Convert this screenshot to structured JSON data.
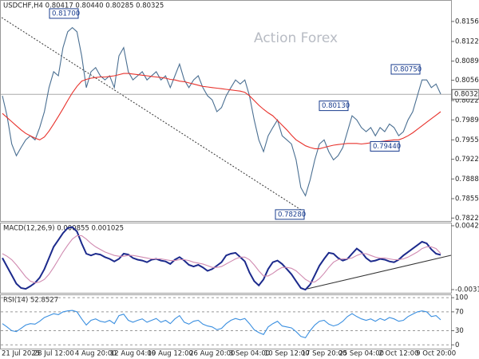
{
  "chart_data": [
    {
      "type": "line",
      "title": "USDCHF,H4 0.80417 0.80440 0.80285 0.80325",
      "watermark": "Action Forex",
      "categories": [
        null,
        null,
        null,
        "21 Jul 2025",
        null,
        null,
        null,
        null,
        null,
        null,
        null,
        "28 Jul 12:00",
        null,
        null,
        null,
        null,
        null,
        null,
        null,
        null,
        "4 Aug 20:00",
        null,
        null,
        null,
        null,
        null,
        null,
        null,
        "12 Aug 04:00",
        null,
        null,
        null,
        null,
        null,
        null,
        null,
        "19 Aug 12:00",
        null,
        null,
        null,
        null,
        null,
        null,
        null,
        null,
        "26 Aug 20:00",
        null,
        null,
        null,
        null,
        null,
        null,
        null,
        "3 Sep 04:00",
        null,
        null,
        null,
        null,
        null,
        null,
        null,
        "10 Sep 12:00",
        null,
        null,
        null,
        null,
        null,
        null,
        null,
        "17 Sep 20:00",
        null,
        null,
        null,
        null,
        null,
        null,
        null,
        "25 Sep 04:00",
        null,
        null,
        null,
        null,
        null,
        null,
        null,
        "2 Oct 12:00",
        null,
        null,
        null,
        null,
        null,
        null,
        null,
        "9 Oct 20:00",
        null
      ],
      "series": [
        {
          "color": "#4a6f92",
          "values": [
            0.803,
            0.7996,
            0.7948,
            0.7928,
            0.7942,
            0.7955,
            0.7962,
            0.7955,
            0.7976,
            0.8003,
            0.8044,
            0.8071,
            0.8064,
            0.8112,
            0.8139,
            0.8146,
            0.8139,
            0.8098,
            0.8044,
            0.8071,
            0.8078,
            0.8064,
            0.8057,
            0.8064,
            0.8044,
            0.8098,
            0.8112,
            0.8071,
            0.8057,
            0.8064,
            0.8071,
            0.8057,
            0.8064,
            0.8071,
            0.8057,
            0.8064,
            0.8044,
            0.8064,
            0.8084,
            0.8057,
            0.8044,
            0.8057,
            0.8064,
            0.8044,
            0.803,
            0.8023,
            0.8003,
            0.801,
            0.803,
            0.8044,
            0.8057,
            0.805,
            0.8057,
            0.803,
            0.7989,
            0.7955,
            0.7935,
            0.7962,
            0.7976,
            0.7989,
            0.7962,
            0.7955,
            0.7948,
            0.7921,
            0.7874,
            0.786,
            0.7887,
            0.7921,
            0.7948,
            0.7955,
            0.7935,
            0.7921,
            0.7928,
            0.7942,
            0.7969,
            0.7996,
            0.7989,
            0.7976,
            0.7969,
            0.7976,
            0.7962,
            0.7976,
            0.7969,
            0.7982,
            0.7976,
            0.7962,
            0.7969,
            0.7989,
            0.8003,
            0.803,
            0.8057,
            0.8057,
            0.8044,
            0.805,
            0.8033
          ]
        },
        {
          "color": "#e8322c",
          "values": [
            0.8,
            0.7993,
            0.7986,
            0.7979,
            0.7972,
            0.7966,
            0.7962,
            0.7958,
            0.7955,
            0.796,
            0.797,
            0.7982,
            0.7995,
            0.8008,
            0.8022,
            0.8035,
            0.8046,
            0.8055,
            0.8058,
            0.806,
            0.8061,
            0.8062,
            0.8062,
            0.8063,
            0.8064,
            0.8066,
            0.8068,
            0.8068,
            0.8067,
            0.8066,
            0.8065,
            0.8064,
            0.8063,
            0.8062,
            0.8061,
            0.806,
            0.8058,
            0.8057,
            0.8055,
            0.8054,
            0.8052,
            0.805,
            0.8048,
            0.8046,
            0.8045,
            0.8044,
            0.8043,
            0.8042,
            0.8041,
            0.804,
            0.8039,
            0.8038,
            0.8036,
            0.803,
            0.8022,
            0.8014,
            0.8007,
            0.8001,
            0.7996,
            0.7988,
            0.798,
            0.7972,
            0.7963,
            0.7955,
            0.795,
            0.7945,
            0.7942,
            0.794,
            0.794,
            0.7942,
            0.7944,
            0.7946,
            0.7947,
            0.7948,
            0.7949,
            0.7949,
            0.7949,
            0.7948,
            0.7949,
            0.795,
            0.7951,
            0.7952,
            0.7953,
            0.7954,
            0.7955,
            0.7955,
            0.7958,
            0.7962,
            0.7967,
            0.7973,
            0.7979,
            0.7985,
            0.7991,
            0.7997,
            0.8003
          ]
        }
      ],
      "ylim": [
        0.7817,
        0.8193
      ],
      "yticks": [
        {
          "value": 0.81565,
          "label": "0.81565"
        },
        {
          "value": 0.81225,
          "label": "0.81225"
        },
        {
          "value": 0.8089,
          "label": "0.80890"
        },
        {
          "value": 0.80565,
          "label": "0.80565"
        },
        {
          "value": 0.8022,
          "label": "0.80220"
        },
        {
          "value": 0.7989,
          "label": "0.79890"
        },
        {
          "value": 0.7955,
          "label": "0.79550"
        },
        {
          "value": 0.7922,
          "label": "0.79220"
        },
        {
          "value": 0.78885,
          "label": "0.78885"
        },
        {
          "value": 0.7855,
          "label": "0.78550"
        },
        {
          "value": 0.7822,
          "label": "0.78220"
        }
      ],
      "last_price": 0.80325,
      "annotations": [
        {
          "value": 0.817,
          "label": "0.81700"
        },
        {
          "value": 0.7828,
          "label": "0.78280"
        },
        {
          "value": 0.8013,
          "label": "0.80130"
        },
        {
          "value": 0.7944,
          "label": "0.79440"
        },
        {
          "value": 0.8075,
          "label": "0.80750"
        }
      ],
      "grid": false
    },
    {
      "type": "line",
      "title": "MACD(12,26,9) 0.000855 0.001025",
      "series": [
        {
          "color": "#1c2a8c",
          "values": [
            0.0005,
            -0.0005,
            -0.0015,
            -0.0025,
            -0.003,
            -0.0031,
            -0.0028,
            -0.0024,
            -0.0018,
            -0.0008,
            0.0005,
            0.0018,
            0.0026,
            0.0034,
            0.004,
            0.0041,
            0.0036,
            0.0022,
            0.001,
            0.0008,
            0.001,
            0.0009,
            0.0006,
            0.0004,
            0.0001,
            0.0004,
            0.001,
            0.0009,
            0.0005,
            0.0003,
            0.0002,
            0.0,
            0.0003,
            0.0004,
            0.0002,
            0.0001,
            -0.0002,
            0.0003,
            0.0006,
            0.0002,
            -0.0003,
            -0.0005,
            -0.0003,
            -0.0006,
            -0.001,
            -0.0008,
            -0.0004,
            0.0,
            0.0008,
            0.001,
            0.0011,
            0.0006,
            0.0001,
            -0.0012,
            -0.0022,
            -0.0027,
            -0.002,
            -0.0008,
            0.0,
            0.0002,
            -0.0002,
            -0.0008,
            -0.0014,
            -0.0022,
            -0.003,
            -0.0032,
            -0.0026,
            -0.0015,
            -0.0004,
            0.0004,
            0.0011,
            0.001,
            0.0005,
            0.0002,
            0.0004,
            0.001,
            0.0016,
            0.0012,
            0.0005,
            0.0001,
            0.0002,
            0.0004,
            0.0003,
            0.0001,
            0.0,
            0.0003,
            0.0008,
            0.0012,
            0.0016,
            0.002,
            0.0024,
            0.0022,
            0.0015,
            0.001,
            0.00086
          ]
        },
        {
          "color": "#d08ab0",
          "values": [
            0.001,
            0.0007,
            0.0003,
            -0.0003,
            -0.001,
            -0.0017,
            -0.0022,
            -0.0024,
            -0.0023,
            -0.002,
            -0.0014,
            -0.0006,
            0.0003,
            0.0012,
            0.002,
            0.0027,
            0.0031,
            0.0031,
            0.0027,
            0.0022,
            0.0018,
            0.0015,
            0.0012,
            0.001,
            0.0008,
            0.0007,
            0.0007,
            0.0008,
            0.0008,
            0.0007,
            0.0006,
            0.0005,
            0.0004,
            0.0004,
            0.0004,
            0.0003,
            0.0002,
            0.0002,
            0.0003,
            0.0003,
            0.0002,
            0.0,
            -0.0001,
            -0.0002,
            -0.0004,
            -0.0006,
            -0.0006,
            -0.0005,
            -0.0002,
            0.0001,
            0.0004,
            0.0006,
            0.0006,
            0.0003,
            -0.0003,
            -0.001,
            -0.0016,
            -0.0016,
            -0.0013,
            -0.0009,
            -0.0006,
            -0.0006,
            -0.0007,
            -0.001,
            -0.0015,
            -0.002,
            -0.0023,
            -0.0023,
            -0.0019,
            -0.0013,
            -0.0006,
            0.0,
            0.0003,
            0.0004,
            0.0004,
            0.0005,
            0.0008,
            0.001,
            0.001,
            0.0008,
            0.0006,
            0.0005,
            0.0005,
            0.0004,
            0.0003,
            0.0003,
            0.0004,
            0.0006,
            0.0009,
            0.0012,
            0.0016,
            0.0018,
            0.0018,
            0.0016,
            0.00103
          ]
        }
      ],
      "ylim": [
        -0.00356,
        0.00463
      ],
      "yticks": [
        0.004262,
        -0.003188
      ],
      "grid": false
    },
    {
      "type": "line",
      "title": "RSI(14) 52.8527",
      "series": [
        {
          "color": "#3a8fe0",
          "values": [
            45,
            38,
            30,
            28,
            35,
            42,
            45,
            44,
            50,
            58,
            62,
            66,
            64,
            70,
            72,
            73,
            70,
            55,
            42,
            52,
            55,
            50,
            48,
            52,
            45,
            62,
            65,
            52,
            48,
            52,
            55,
            48,
            52,
            56,
            48,
            52,
            45,
            55,
            62,
            48,
            44,
            50,
            52,
            44,
            40,
            38,
            32,
            35,
            45,
            52,
            56,
            53,
            56,
            45,
            32,
            26,
            22,
            38,
            45,
            50,
            40,
            38,
            36,
            28,
            18,
            15,
            30,
            42,
            50,
            52,
            44,
            40,
            43,
            50,
            60,
            66,
            60,
            55,
            52,
            55,
            50,
            56,
            52,
            58,
            55,
            50,
            52,
            60,
            65,
            70,
            72,
            70,
            60,
            62,
            53
          ]
        }
      ],
      "ylim": [
        -8,
        107
      ],
      "yticks": [
        100,
        70,
        30,
        0
      ],
      "grid": true
    }
  ]
}
